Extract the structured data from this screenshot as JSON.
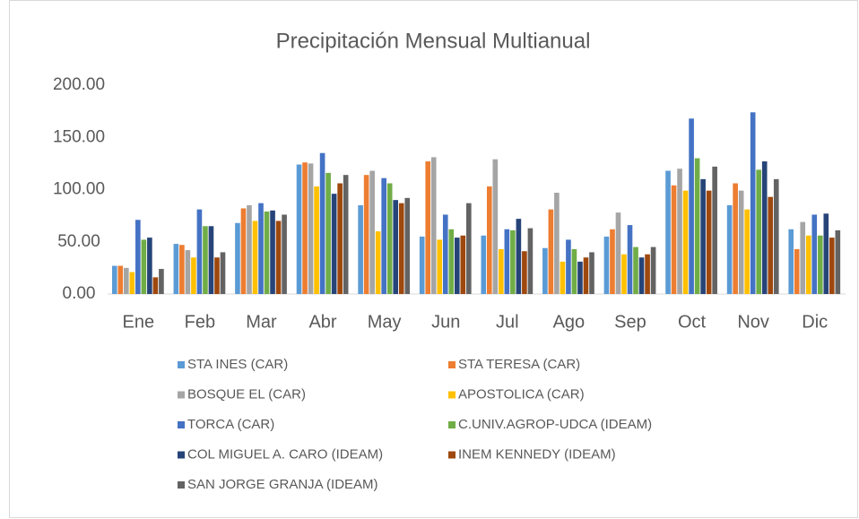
{
  "chart_data": {
    "type": "bar",
    "title": "Precipitación Mensual Multianual",
    "categories": [
      "Ene",
      "Feb",
      "Mar",
      "Abr",
      "May",
      "Jun",
      "Jul",
      "Ago",
      "Sep",
      "Oct",
      "Nov",
      "Dic"
    ],
    "series": [
      {
        "name": "STA INES (CAR)",
        "color": "#5b9bd5",
        "values": [
          27,
          48,
          68,
          124,
          85,
          55,
          56,
          44,
          55,
          118,
          85,
          62
        ]
      },
      {
        "name": "STA TERESA (CAR)",
        "color": "#ed7d31",
        "values": [
          27,
          47,
          82,
          126,
          114,
          127,
          103,
          81,
          62,
          104,
          106,
          43
        ]
      },
      {
        "name": "BOSQUE EL (CAR)",
        "color": "#a5a5a5",
        "values": [
          25,
          42,
          85,
          125,
          118,
          131,
          129,
          97,
          78,
          120,
          99,
          69
        ]
      },
      {
        "name": "APOSTOLICA (CAR)",
        "color": "#ffc000",
        "values": [
          21,
          35,
          70,
          103,
          60,
          52,
          43,
          31,
          38,
          99,
          81,
          56
        ]
      },
      {
        "name": "TORCA (CAR)",
        "color": "#4472c4",
        "values": [
          71,
          81,
          87,
          135,
          111,
          76,
          62,
          52,
          66,
          168,
          174,
          76
        ]
      },
      {
        "name": "C.UNIV.AGROP-UDCA (IDEAM)",
        "color": "#70ad47",
        "values": [
          52,
          65,
          79,
          116,
          106,
          62,
          61,
          43,
          45,
          130,
          119,
          56
        ]
      },
      {
        "name": "COL MIGUEL A. CARO  (IDEAM)",
        "color": "#264478",
        "values": [
          54,
          65,
          80,
          96,
          90,
          54,
          72,
          31,
          35,
          110,
          127,
          77
        ]
      },
      {
        "name": "INEM KENNEDY (IDEAM)",
        "color": "#9e480e",
        "values": [
          16,
          35,
          70,
          106,
          87,
          56,
          41,
          35,
          38,
          99,
          93,
          54
        ]
      },
      {
        "name": "SAN JORGE GRANJA (IDEAM)",
        "color": "#636363",
        "values": [
          24,
          40,
          76,
          114,
          92,
          87,
          63,
          40,
          45,
          122,
          110,
          61
        ]
      }
    ],
    "ylim": [
      0,
      200
    ],
    "yticks": [
      {
        "value": 0,
        "label": "0.00"
      },
      {
        "value": 50,
        "label": "50.00"
      },
      {
        "value": 100,
        "label": "100.00"
      },
      {
        "value": 150,
        "label": "150.00"
      },
      {
        "value": 200,
        "label": "200.00"
      }
    ],
    "grid": false
  }
}
